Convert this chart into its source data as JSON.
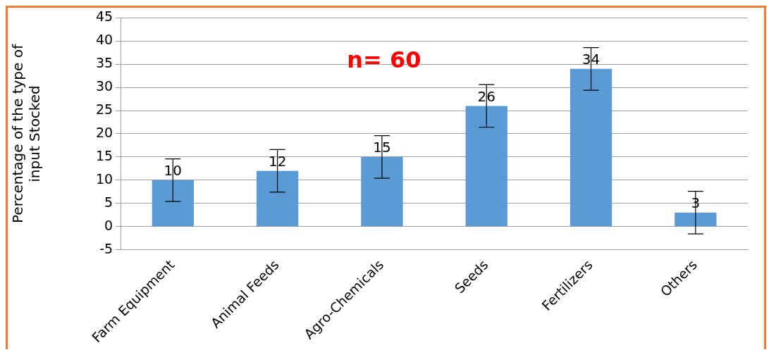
{
  "chart_data": {
    "type": "bar",
    "ylabel": "Percentage of the type of\ninput Stocked",
    "categories": [
      "Farm Equipment",
      "Animal Feeds",
      "Agro-Chemicals",
      "Seeds",
      "Fertilizers",
      "Others"
    ],
    "values": [
      10,
      12,
      15,
      26,
      34,
      3
    ],
    "color": "#5b9bd5",
    "errors": [
      4.6,
      4.6,
      4.6,
      4.6,
      4.6,
      4.6
    ],
    "ylim": [
      -5,
      45
    ],
    "yticks": [
      -5,
      0,
      5,
      10,
      15,
      20,
      25,
      30,
      35,
      40,
      45
    ],
    "grid": "y",
    "data_labels": true,
    "annotations": [
      "n= 60"
    ]
  }
}
